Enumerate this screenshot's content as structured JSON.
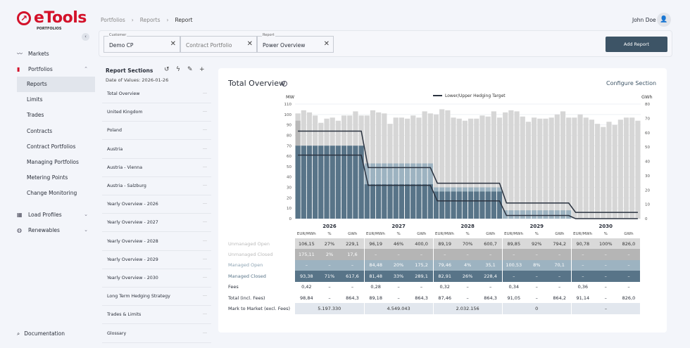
{
  "app": {
    "brand": "eTools",
    "sub": "PORTFOLIOS",
    "user": "John Doe"
  },
  "sidebar": {
    "items": [
      {
        "label": "Markets",
        "icon": "trend-icon"
      },
      {
        "label": "Portfolios",
        "icon": "bar-chart-icon",
        "expanded": true
      },
      {
        "label": "Load Profiles",
        "icon": "load-chart-icon"
      },
      {
        "label": "Renewables",
        "icon": "leaf-icon"
      }
    ],
    "sub": [
      "Reports",
      "Limits",
      "Trades",
      "Contracts",
      "Contract Portfolios",
      "Managing Portfolios",
      "Metering Points",
      "Change Monitoring"
    ],
    "active": "Reports",
    "documentation": "Documentation"
  },
  "breadcrumb": [
    "Portfolios",
    "Reports",
    "Report"
  ],
  "filters": {
    "customer": {
      "label": "Customer",
      "value": "Demo CP"
    },
    "portfolio": {
      "placeholder": "Contract Portfolio"
    },
    "report": {
      "label": "Report",
      "value": "Power Overview"
    },
    "add": "Add Report"
  },
  "sections": {
    "title": "Report Sections",
    "date": "Date of Values: 2026-01-26",
    "items": [
      "Total Overview",
      "United Kingdom",
      "Poland",
      "Austria",
      "Austria - Vienna",
      "Austria - Salzburg",
      "Yearly Overview - 2026",
      "Yearly Overview - 2027",
      "Yearly Overview - 2028",
      "Yearly Overview - 2029",
      "Yearly Overview - 2030",
      "Long Term Hedging Strategy",
      "Trades & Limits",
      "Glossary"
    ]
  },
  "card": {
    "title": "Total Overview",
    "configure": "Configure Section"
  },
  "chart_data": {
    "type": "bar",
    "legend": "Lower/Upper Hedging Target",
    "legend_position": "top",
    "ylabel": "MW",
    "y2label": "GWh",
    "ylim": [
      0,
      110
    ],
    "y2lim": [
      0,
      80
    ],
    "yticks": [
      0,
      10,
      20,
      30,
      40,
      50,
      60,
      70,
      80,
      90,
      100,
      110
    ],
    "y2ticks": [
      0,
      10,
      20,
      30,
      40,
      50,
      60,
      70,
      80
    ],
    "years": [
      "2026",
      "2027",
      "2028",
      "2029",
      "2030"
    ],
    "colors": {
      "unmanaged_open": "#d6d6d6",
      "unmanaged_closed": "#b8b8b8",
      "managed_open": "#9db3c1",
      "managed_closed": "#587488",
      "target": "#2b3340"
    },
    "total_mw": [
      101,
      104,
      102,
      99,
      92,
      96,
      97,
      94,
      99,
      99,
      103,
      99,
      99,
      104,
      102,
      101,
      91,
      97,
      97,
      96,
      99,
      97,
      103,
      101,
      100,
      105,
      104,
      97,
      96,
      94,
      96,
      96,
      99,
      98,
      103,
      97,
      102,
      104,
      103,
      98,
      93,
      97,
      96,
      96,
      97,
      100,
      103,
      97,
      97,
      100,
      97,
      95,
      91,
      88,
      93,
      90,
      95,
      97,
      97,
      94
    ],
    "managed_closed_mw": [
      70,
      33,
      26,
      0,
      0
    ],
    "managed_open_top_mw": [
      70,
      53,
      30,
      8,
      0
    ],
    "unmanaged_closed_first_month_mw": 94,
    "upper_target_mw": [
      84,
      49,
      34,
      15,
      6
    ],
    "lower_target_mw": [
      61,
      32,
      17,
      3,
      0
    ]
  },
  "table": {
    "units": [
      "EUR/MWh",
      "%",
      "GWh"
    ],
    "rows": [
      {
        "label": "Unmanaged Open",
        "cls": "uo",
        "values": [
          "106,15",
          "27%",
          "229,1",
          "96,19",
          "46%",
          "400,0",
          "89,19",
          "70%",
          "600,7",
          "89,85",
          "92%",
          "794,2",
          "90,78",
          "100%",
          "826,0"
        ]
      },
      {
        "label": "Unmanaged Closed",
        "cls": "uc",
        "values": [
          "175,11",
          "2%",
          "17,6",
          "–",
          "–",
          "–",
          "–",
          "–",
          "–",
          "–",
          "–",
          "–",
          "–",
          "–",
          "–"
        ]
      },
      {
        "label": "Managed Open",
        "cls": "mo",
        "values": [
          "–",
          "–",
          "–",
          "84,48",
          "20%",
          "175,2",
          "79,46",
          "4%",
          "35,1",
          "100,53",
          "8%",
          "70,1",
          "–",
          "–",
          "–"
        ]
      },
      {
        "label": "Managed Closed",
        "cls": "mc",
        "values": [
          "93,38",
          "71%",
          "617,6",
          "81,48",
          "33%",
          "289,1",
          "82,91",
          "26%",
          "228,4",
          "–",
          "–",
          "–",
          "–",
          "–",
          "–"
        ]
      },
      {
        "label": "Fees",
        "cls": "fe",
        "values": [
          "0,42",
          "–",
          "–",
          "0,28",
          "–",
          "–",
          "0,32",
          "–",
          "–",
          "0,34",
          "–",
          "–",
          "0,36",
          "–",
          "–"
        ]
      },
      {
        "label": "Total (incl. Fees)",
        "cls": "to",
        "values": [
          "98,84",
          "–",
          "864,3",
          "89,18",
          "–",
          "864,3",
          "87,46",
          "–",
          "864,3",
          "91,05",
          "–",
          "864,2",
          "91,14",
          "–",
          "826,0"
        ]
      }
    ],
    "mtm": {
      "label": "Mark to Market (excl. Fees)",
      "values": [
        "5.197.330",
        "4.549.043",
        "2.032.156",
        "0",
        "–"
      ]
    }
  }
}
